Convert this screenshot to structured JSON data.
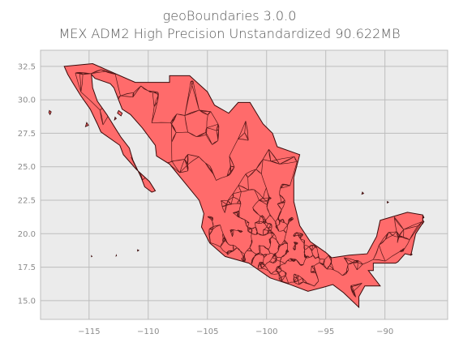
{
  "figure": {
    "title_line1": "geoBoundaries 3.0.0",
    "title_line2": "MEX ADM2 High Precision Unstandardized 90.622MB"
  },
  "chart_data": {
    "type": "map",
    "title": "geoBoundaries 3.0.0 — MEX ADM2 High Precision Unstandardized 90.622MB",
    "xlim": [
      -119.1,
      -84.7
    ],
    "ylim": [
      13.6,
      33.7
    ],
    "x_ticks": [
      -115,
      -110,
      -105,
      -100,
      -95,
      -90
    ],
    "x_tick_labels": [
      "−115",
      "−110",
      "−105",
      "−100",
      "−95",
      "−90"
    ],
    "y_ticks": [
      15.0,
      17.5,
      20.0,
      22.5,
      25.0,
      27.5,
      30.0,
      32.5
    ],
    "y_tick_labels": [
      "15.0",
      "17.5",
      "20.0",
      "22.5",
      "25.0",
      "27.5",
      "30.0",
      "32.5"
    ],
    "grid": true,
    "colors": {
      "fill": "#ff6b6b",
      "edge": "#3a0a0a",
      "plot_background": "#ebebeb",
      "grid": "#bdbdbd"
    },
    "mainland_outline": [
      [
        -117.1,
        32.5
      ],
      [
        -114.7,
        32.7
      ],
      [
        -111.1,
        31.3
      ],
      [
        -108.2,
        31.3
      ],
      [
        -108.2,
        31.8
      ],
      [
        -106.5,
        31.8
      ],
      [
        -105.0,
        30.6
      ],
      [
        -104.4,
        29.6
      ],
      [
        -103.2,
        29.0
      ],
      [
        -102.4,
        29.8
      ],
      [
        -101.4,
        29.8
      ],
      [
        -100.3,
        28.2
      ],
      [
        -99.5,
        27.5
      ],
      [
        -99.1,
        26.5
      ],
      [
        -97.2,
        25.9
      ],
      [
        -97.7,
        24.2
      ],
      [
        -97.7,
        22.4
      ],
      [
        -97.2,
        20.6
      ],
      [
        -96.3,
        19.4
      ],
      [
        -95.0,
        18.6
      ],
      [
        -94.5,
        18.2
      ],
      [
        -93.0,
        18.4
      ],
      [
        -91.5,
        18.5
      ],
      [
        -90.7,
        19.8
      ],
      [
        -90.4,
        21.0
      ],
      [
        -88.1,
        21.6
      ],
      [
        -86.8,
        21.4
      ],
      [
        -86.8,
        20.8
      ],
      [
        -87.4,
        20.0
      ],
      [
        -87.8,
        18.4
      ],
      [
        -88.3,
        18.5
      ],
      [
        -88.9,
        17.9
      ],
      [
        -89.1,
        17.8
      ],
      [
        -90.98,
        17.8
      ],
      [
        -90.98,
        17.25
      ],
      [
        -91.4,
        17.25
      ],
      [
        -90.4,
        16.1
      ],
      [
        -91.7,
        16.1
      ],
      [
        -92.2,
        15.3
      ],
      [
        -92.2,
        14.5
      ],
      [
        -93.5,
        15.6
      ],
      [
        -94.4,
        16.2
      ],
      [
        -95.2,
        16.0
      ],
      [
        -96.5,
        15.7
      ],
      [
        -98.0,
        16.2
      ],
      [
        -99.7,
        16.7
      ],
      [
        -101.5,
        17.8
      ],
      [
        -103.5,
        18.3
      ],
      [
        -104.8,
        19.3
      ],
      [
        -105.5,
        20.5
      ],
      [
        -105.3,
        21.5
      ],
      [
        -105.7,
        22.5
      ],
      [
        -106.9,
        23.8
      ],
      [
        -108.2,
        25.2
      ],
      [
        -109.3,
        25.8
      ],
      [
        -109.4,
        26.6
      ],
      [
        -110.5,
        27.9
      ],
      [
        -111.5,
        28.9
      ],
      [
        -112.2,
        29.3
      ],
      [
        -112.9,
        30.9
      ],
      [
        -113.2,
        31.2
      ],
      [
        -114.5,
        31.6
      ],
      [
        -114.8,
        31.9
      ],
      [
        -114.7,
        30.9
      ],
      [
        -114.3,
        29.9
      ],
      [
        -113.5,
        28.9
      ],
      [
        -112.8,
        27.9
      ],
      [
        -112.3,
        27.2
      ],
      [
        -111.6,
        26.4
      ],
      [
        -111.3,
        25.5
      ],
      [
        -110.6,
        24.2
      ],
      [
        -110.3,
        23.5
      ],
      [
        -109.7,
        23.1
      ],
      [
        -109.4,
        23.2
      ],
      [
        -109.9,
        23.9
      ],
      [
        -111.0,
        24.8
      ],
      [
        -112.1,
        25.9
      ],
      [
        -112.4,
        26.6
      ],
      [
        -114.0,
        27.6
      ],
      [
        -114.3,
        28.2
      ],
      [
        -114.9,
        29.3
      ],
      [
        -115.7,
        30.3
      ],
      [
        -116.4,
        31.3
      ],
      [
        -116.8,
        31.9
      ],
      [
        -117.1,
        32.5
      ]
    ],
    "islands": [
      [
        [
          -118.35,
          29.2
        ],
        [
          -118.2,
          29.1
        ],
        [
          -118.3,
          28.9
        ],
        [
          -118.4,
          29.05
        ]
      ],
      [
        [
          -112.5,
          29.2
        ],
        [
          -112.2,
          29.0
        ],
        [
          -112.3,
          28.8
        ],
        [
          -112.6,
          29.0
        ]
      ],
      [
        [
          -112.8,
          28.7
        ],
        [
          -112.7,
          28.6
        ],
        [
          -112.85,
          28.5
        ]
      ],
      [
        [
          -115.2,
          28.3
        ],
        [
          -115.05,
          28.1
        ],
        [
          -115.3,
          28.0
        ]
      ],
      [
        [
          -86.8,
          21.0
        ],
        [
          -86.7,
          20.9
        ],
        [
          -86.85,
          20.7
        ]
      ],
      [
        [
          -86.75,
          21.3
        ],
        [
          -86.7,
          21.2
        ],
        [
          -86.8,
          21.15
        ]
      ],
      [
        [
          -91.9,
          23.1
        ],
        [
          -91.8,
          23.0
        ],
        [
          -91.95,
          22.95
        ]
      ],
      [
        [
          -89.8,
          22.4
        ],
        [
          -89.7,
          22.35
        ],
        [
          -89.8,
          22.3
        ]
      ],
      [
        [
          -110.9,
          18.8
        ],
        [
          -110.8,
          18.75
        ],
        [
          -110.9,
          18.7
        ]
      ],
      [
        [
          -112.7,
          18.4
        ],
        [
          -112.68,
          18.35
        ],
        [
          -112.72,
          18.33
        ]
      ],
      [
        [
          -114.8,
          18.35
        ],
        [
          -114.75,
          18.3
        ],
        [
          -114.8,
          18.28
        ]
      ],
      [
        [
          -87.8,
          18.5
        ],
        [
          -87.7,
          18.45
        ],
        [
          -87.8,
          18.4
        ]
      ]
    ]
  }
}
